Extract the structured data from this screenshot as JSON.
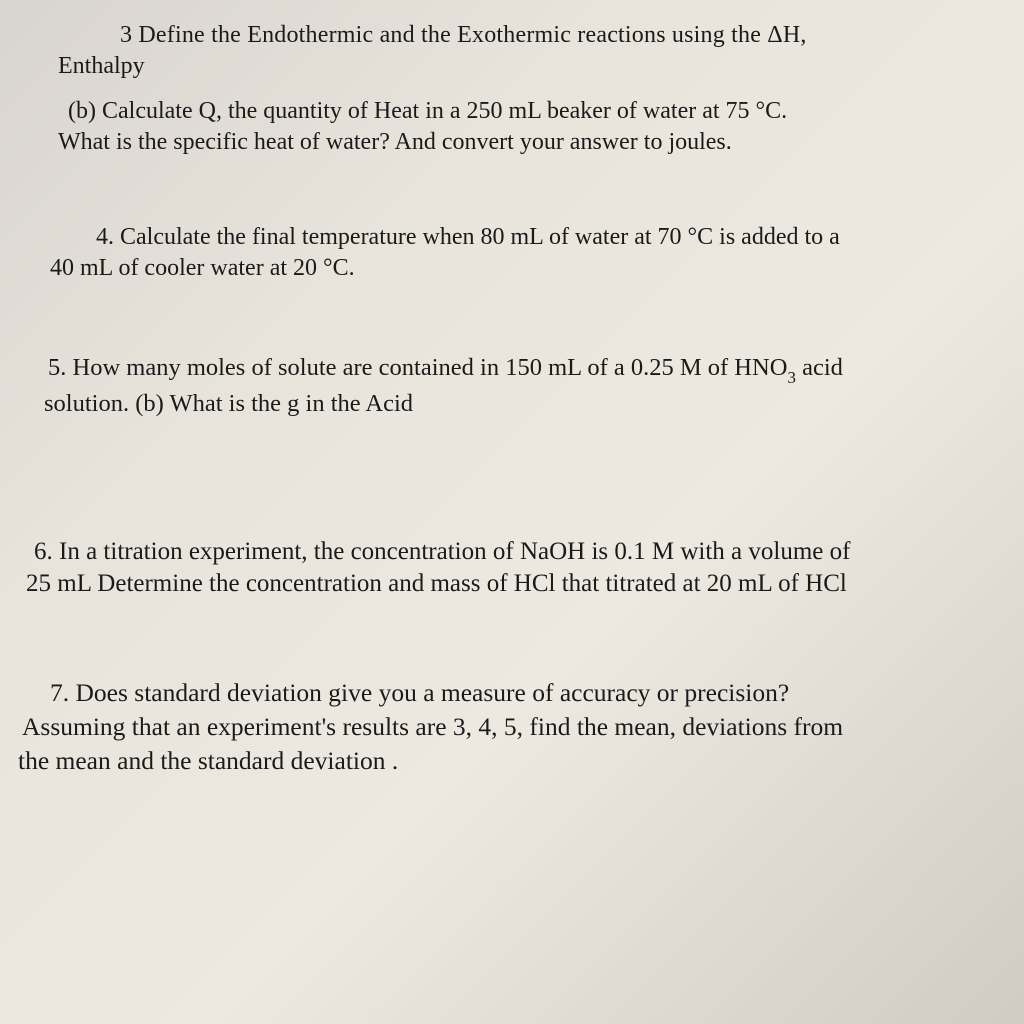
{
  "document": {
    "background_colors": [
      "#d8d4ce",
      "#e8e4dc",
      "#ede9e1",
      "#d0ccc4"
    ],
    "text_color": "#1a1a1a",
    "font_family": "Georgia, Times New Roman, serif",
    "base_fontsize": 24
  },
  "q3": {
    "line1": "3   Define the Endothermic and the Exothermic reactions using the ΔH,",
    "line2": "Enthalpy"
  },
  "q3b": {
    "line1": "(b)  Calculate Q, the quantity of Heat in a 250 mL beaker of water at 75 °C.",
    "line2": "What is the specific heat of water? And convert your answer to joules."
  },
  "q4": {
    "line1": "4.   Calculate the final temperature when 80 mL of water at 70 °C is added to a",
    "line2": "40 mL of cooler water at 20 °C."
  },
  "q5": {
    "line1_prefix": "5.  How many moles of solute are contained in 150 mL of a 0.25 M of HNO",
    "line1_sub": "3",
    "line1_suffix": " acid",
    "line2": "solution.   (b)  What is the g in the Acid"
  },
  "q6": {
    "line1": "6.  In a titration experiment, the concentration of NaOH is 0.1 M with a volume of",
    "line2": "25 mL  Determine the concentration and mass of HCl that titrated at 20 mL of HCl"
  },
  "q7": {
    "line1": "7.  Does standard deviation give you a measure of accuracy or precision?",
    "line2": "Assuming that an experiment's results are 3, 4, 5, find the mean, deviations from",
    "line3": "the mean and the standard deviation ."
  }
}
